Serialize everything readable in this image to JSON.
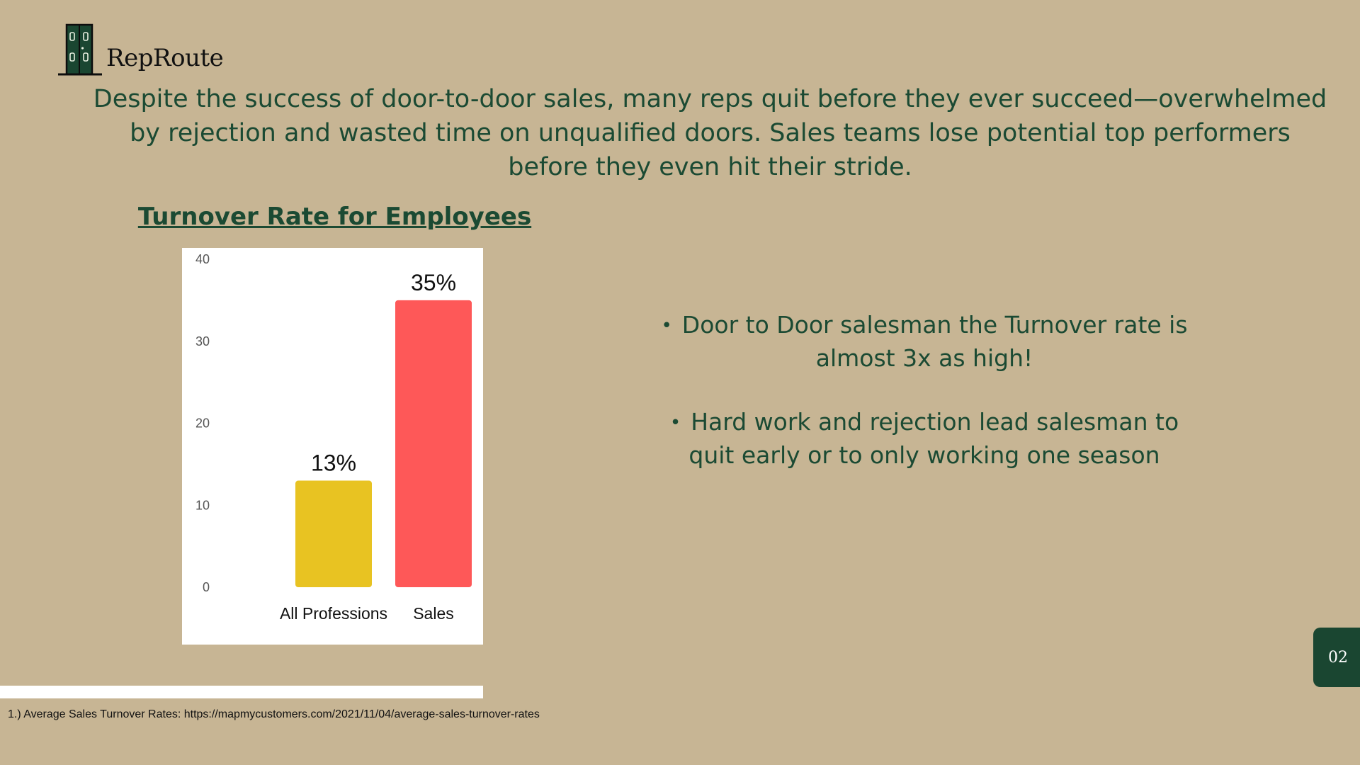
{
  "brand": {
    "name": "RepRoute",
    "logo_icon": "door-icon",
    "color": "#1b4a33"
  },
  "intro_text": "Despite the success of door-to-door sales, many reps quit before they ever succeed—overwhelmed by rejection and wasted time on unqualified doors. Sales teams lose potential top performers before they even hit their stride.",
  "bullets": [
    "Door to Door salesman the Turnover rate is almost 3x as high!",
    "Hard work and rejection lead salesman to quit early or to only working one season"
  ],
  "footnote": "1.) Average Sales Turnover Rates: https://mapmycustomers.com/2021/11/04/average-sales-turnover-rates",
  "page_number": "02",
  "chart_data": {
    "type": "bar",
    "title": "Turnover Rate for Employees",
    "categories": [
      "All Professions",
      "Sales"
    ],
    "values": [
      13,
      35
    ],
    "value_labels": [
      "13%",
      "35%"
    ],
    "bar_colors": [
      "#e8c322",
      "#fe5858"
    ],
    "ylim": [
      0,
      40
    ],
    "yticks": [
      0,
      10,
      20,
      30,
      40
    ],
    "xlabel": "",
    "ylabel": "",
    "grid": false,
    "legend": "none"
  }
}
